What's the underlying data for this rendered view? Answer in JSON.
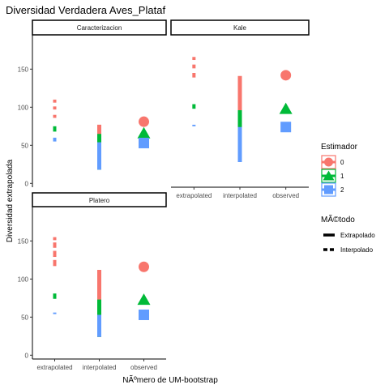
{
  "chart_data": {
    "type": "faceted-range-point",
    "title": "Diversidad Verdadera Aves_Plataf",
    "xlabel": "NÃºmero de UM-bootstrap",
    "ylabel": "Diversidad extrapolada",
    "categories": [
      "extrapolated",
      "interpolated",
      "observed"
    ],
    "ylim": [
      -5,
      195
    ],
    "yticks": [
      0,
      50,
      100,
      150
    ],
    "colors": {
      "0": "#F8766D",
      "1": "#00BA38",
      "2": "#619CFF"
    },
    "legend": {
      "estimador_title": "Estimador",
      "estimador_entries": [
        "0",
        "1",
        "2"
      ],
      "metodo_title": "MÃ©todo",
      "metodo_entries": [
        "Extrapolado",
        "Interpolado"
      ]
    },
    "panels": [
      {
        "name": "Caracterizacion",
        "extrapolated": [
          {
            "q": "0",
            "segments": [
              [
                86,
                90
              ],
              [
                97,
                101
              ],
              [
                106,
                110
              ]
            ]
          },
          {
            "q": "1",
            "segments": [
              [
                68,
                75
              ]
            ]
          },
          {
            "q": "2",
            "segments": [
              [
                55,
                60
              ]
            ]
          }
        ],
        "interpolated": [
          {
            "q": "0",
            "lo": 18,
            "hi": 77
          },
          {
            "q": "1",
            "lo": 18,
            "hi": 65
          },
          {
            "q": "2",
            "lo": 18,
            "hi": 54
          }
        ],
        "observed": {
          "0": 81,
          "1": 66,
          "2": 53
        }
      },
      {
        "name": "Kale",
        "extrapolated": [
          {
            "q": "0",
            "segments": [
              [
                139,
                145
              ],
              [
                151,
                156
              ],
              [
                162,
                166
              ]
            ]
          },
          {
            "q": "1",
            "segments": [
              [
                98,
                104
              ]
            ]
          },
          {
            "q": "2",
            "segments": [
              [
                75,
                77
              ]
            ]
          }
        ],
        "interpolated": [
          {
            "q": "0",
            "lo": 28,
            "hi": 141
          },
          {
            "q": "1",
            "lo": 28,
            "hi": 96
          },
          {
            "q": "2",
            "lo": 28,
            "hi": 74
          }
        ],
        "observed": {
          "0": 142,
          "1": 98,
          "2": 74
        }
      },
      {
        "name": "Platero",
        "extrapolated": [
          {
            "q": "0",
            "segments": [
              [
                117,
                125
              ],
              [
                129,
                137
              ],
              [
                141,
                148
              ],
              [
                151,
                155
              ]
            ]
          },
          {
            "q": "1",
            "segments": [
              [
                74,
                81
              ]
            ]
          },
          {
            "q": "2",
            "segments": [
              [
                54,
                56
              ]
            ]
          }
        ],
        "interpolated": [
          {
            "q": "0",
            "lo": 24,
            "hi": 112
          },
          {
            "q": "1",
            "lo": 24,
            "hi": 73
          },
          {
            "q": "2",
            "lo": 24,
            "hi": 53
          }
        ],
        "observed": {
          "0": 116,
          "1": 73,
          "2": 53
        }
      }
    ]
  }
}
